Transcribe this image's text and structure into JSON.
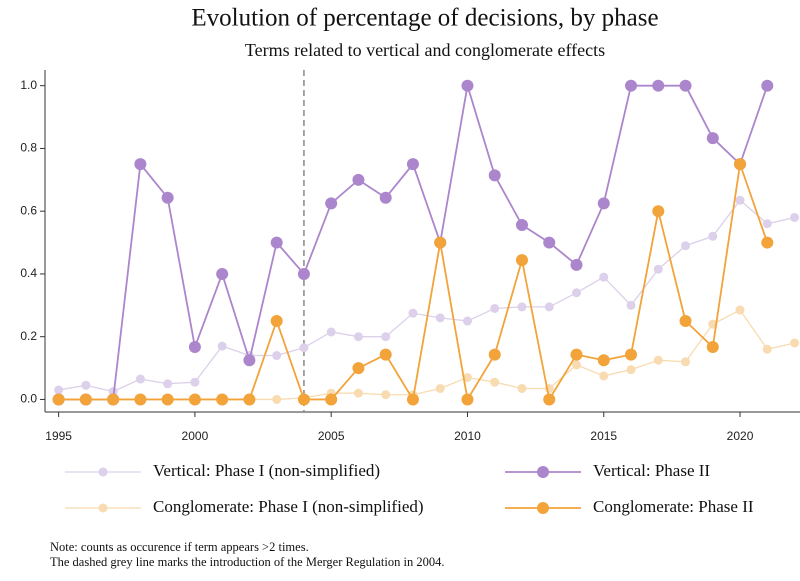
{
  "chart_data": {
    "type": "line",
    "title": "Evolution of percentage of decisions, by phase",
    "subtitle": "Terms related to vertical and conglomerate effects",
    "x": [
      1995,
      1996,
      1997,
      1998,
      1999,
      2000,
      2001,
      2002,
      2003,
      2004,
      2005,
      2006,
      2007,
      2008,
      2009,
      2010,
      2011,
      2012,
      2013,
      2014,
      2015,
      2016,
      2017,
      2018,
      2019,
      2020,
      2021,
      2022
    ],
    "series": [
      {
        "name": "Vertical: Phase I (non-simplified)",
        "color": "#dcd0ea",
        "values": [
          0.03,
          0.045,
          0.025,
          0.065,
          0.05,
          0.055,
          0.17,
          0.14,
          0.14,
          0.165,
          0.215,
          0.2,
          0.2,
          0.275,
          0.26,
          0.25,
          0.29,
          0.295,
          0.295,
          0.34,
          0.39,
          0.3,
          0.415,
          0.49,
          0.52,
          0.635,
          0.56,
          0.58
        ]
      },
      {
        "name": "Vertical: Phase II",
        "color": "#ac86cc",
        "values": [
          0,
          0,
          0,
          0.75,
          0.643,
          0.167,
          0.4,
          0.125,
          0.5,
          0.4,
          0.625,
          0.7,
          0.643,
          0.75,
          0.5,
          1.0,
          0.714,
          0.556,
          0.5,
          0.429,
          0.625,
          1.0,
          1.0,
          1.0,
          0.833,
          0.75,
          1.0,
          null
        ]
      },
      {
        "name": "Conglomerate: Phase I (non-simplified)",
        "color": "#f8dbb0",
        "values": [
          0,
          0,
          0,
          0,
          0,
          0,
          0,
          0,
          0,
          0.005,
          0.02,
          0.02,
          0.015,
          0.015,
          0.035,
          0.07,
          0.055,
          0.035,
          0.035,
          0.11,
          0.075,
          0.095,
          0.125,
          0.12,
          0.24,
          0.285,
          0.16,
          0.18
        ]
      },
      {
        "name": "Conglomerate: Phase II",
        "color": "#f2a33a",
        "values": [
          0,
          0,
          0,
          0,
          0,
          0,
          0,
          0,
          0.25,
          0,
          0,
          0.1,
          0.143,
          0,
          0.5,
          0,
          0.143,
          0.444,
          0,
          0.143,
          0.125,
          0.143,
          0.6,
          0.25,
          0.167,
          0.75,
          0.5,
          null
        ]
      }
    ],
    "xlim": [
      1994.5,
      2022.2
    ],
    "xticks": [
      1995,
      2000,
      2005,
      2010,
      2015,
      2020
    ],
    "ylim": [
      -0.04,
      1.05
    ],
    "yticks": [
      {
        "value": 0,
        "label": "0.0"
      },
      {
        "value": 0.2,
        "label": "0.2"
      },
      {
        "value": 0.4,
        "label": "0.4"
      },
      {
        "value": 0.6,
        "label": "0.6"
      },
      {
        "value": 0.8,
        "label": "0.8"
      },
      {
        "value": 1,
        "label": "1.0"
      }
    ],
    "vline": 2004,
    "notes": [
      "Note: counts as occurence if term appears >2 times.",
      "The dashed grey line marks the introduction of the Merger Regulation in 2004."
    ]
  }
}
